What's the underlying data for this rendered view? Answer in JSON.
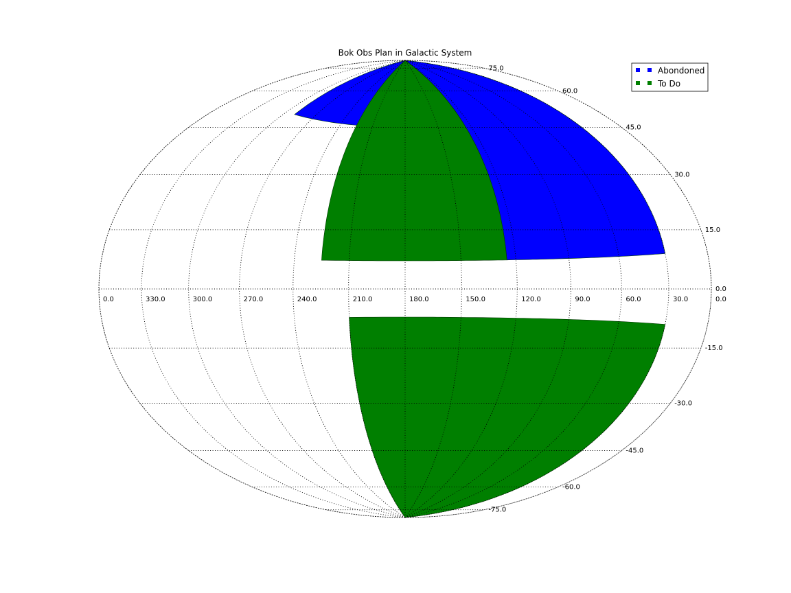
{
  "chart_data": {
    "type": "scatter",
    "title": "Bok Obs Plan in Galactic System",
    "projection": "hammer-aitoff",
    "x_direction": "reversed",
    "grid": true,
    "legend_position": "top-right",
    "x_ticks": [
      "0.0",
      "330.0",
      "300.0",
      "270.0",
      "240.0",
      "210.0",
      "180.0",
      "150.0",
      "120.0",
      "90.0",
      "60.0",
      "30.0",
      "0.0"
    ],
    "y_ticks": [
      "75.0",
      "60.0",
      "45.0",
      "30.0",
      "15.0",
      "0.0",
      "-15.0",
      "-30.0",
      "-45.0",
      "-60.0",
      "-75.0"
    ],
    "series": [
      {
        "name": "Abondoned",
        "color": "#0000ff",
        "regions": [
          {
            "lon": [
              30,
              125
            ],
            "lat": [
              10,
              90
            ]
          },
          {
            "lon": [
              125,
              290
            ],
            "lat": [
              60,
              90
            ]
          }
        ]
      },
      {
        "name": "To Do",
        "color": "#007f00",
        "regions": [
          {
            "lon": [
              125,
              225
            ],
            "lat": [
              10,
              90
            ]
          },
          {
            "lon": [
              30,
              210
            ],
            "lat": [
              -90,
              -10
            ]
          }
        ]
      }
    ]
  }
}
